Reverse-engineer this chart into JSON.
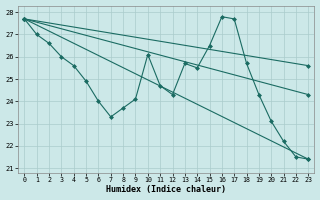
{
  "xlabel": "Humidex (Indice chaleur)",
  "xlim": [
    -0.5,
    23.5
  ],
  "ylim": [
    20.8,
    28.3
  ],
  "yticks": [
    21,
    22,
    23,
    24,
    25,
    26,
    27,
    28
  ],
  "xticks": [
    0,
    1,
    2,
    3,
    4,
    5,
    6,
    7,
    8,
    9,
    10,
    11,
    12,
    13,
    14,
    15,
    16,
    17,
    18,
    19,
    20,
    21,
    22,
    23
  ],
  "bg_color": "#cce8e8",
  "line_color": "#1a6b62",
  "grid_color": "#aacccc",
  "series": [
    {
      "x": [
        0,
        1,
        2,
        3,
        4,
        5,
        6,
        7,
        8,
        9,
        10,
        11,
        12,
        13,
        14,
        15,
        16,
        17,
        18,
        19,
        20,
        21,
        22,
        23
      ],
      "y": [
        27.7,
        27.0,
        26.6,
        26.0,
        25.6,
        24.9,
        24.0,
        23.3,
        23.7,
        24.1,
        26.1,
        24.7,
        24.3,
        25.7,
        25.5,
        26.5,
        27.8,
        27.7,
        25.7,
        24.3,
        23.1,
        22.2,
        21.5,
        21.4
      ]
    },
    {
      "x": [
        0,
        23
      ],
      "y": [
        27.7,
        25.6
      ]
    },
    {
      "x": [
        0,
        23
      ],
      "y": [
        27.7,
        24.3
      ]
    },
    {
      "x": [
        0,
        23
      ],
      "y": [
        27.7,
        21.4
      ]
    }
  ]
}
